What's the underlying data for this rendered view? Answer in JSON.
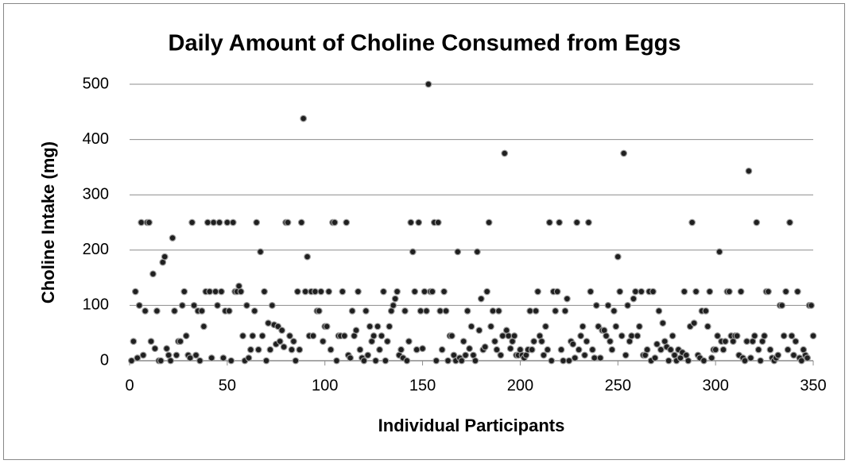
{
  "chart_data": {
    "type": "scatter",
    "title": "Daily Amount of Choline Consumed from Eggs",
    "xlabel": "Individual Participants",
    "ylabel": "Choline Intake (mg)",
    "xlim": [
      0,
      350
    ],
    "xticks": [
      0,
      50,
      100,
      150,
      200,
      250,
      300,
      350
    ],
    "ylim": [
      0,
      500
    ],
    "yticks": [
      0,
      100,
      200,
      300,
      400,
      500
    ],
    "grid": true,
    "series": [
      {
        "color": "#1f1f1f",
        "x": [
          1,
          2,
          3,
          4,
          5,
          6,
          7,
          8,
          9,
          10,
          11,
          12,
          13,
          14,
          15,
          16,
          17,
          18,
          19,
          20,
          21,
          22,
          23,
          24,
          25,
          26,
          27,
          28,
          29,
          30,
          31,
          32,
          33,
          34,
          35,
          36,
          37,
          38,
          39,
          40,
          41,
          42,
          43,
          44,
          45,
          46,
          47,
          48,
          49,
          50,
          51,
          52,
          53,
          54,
          55,
          56,
          57,
          58,
          59,
          60,
          61,
          62,
          63,
          64,
          65,
          66,
          67,
          68,
          69,
          70,
          71,
          72,
          73,
          74,
          75,
          76,
          77,
          78,
          79,
          80,
          81,
          82,
          83,
          84,
          85,
          86,
          87,
          88,
          89,
          90,
          91,
          92,
          93,
          94,
          95,
          96,
          97,
          98,
          99,
          100,
          101,
          102,
          103,
          104,
          105,
          106,
          107,
          108,
          109,
          110,
          111,
          112,
          113,
          114,
          115,
          116,
          117,
          118,
          119,
          120,
          121,
          122,
          123,
          124,
          125,
          126,
          127,
          128,
          129,
          130,
          131,
          132,
          133,
          134,
          135,
          136,
          137,
          138,
          139,
          140,
          141,
          142,
          143,
          144,
          145,
          146,
          147,
          148,
          149,
          150,
          151,
          152,
          153,
          154,
          155,
          156,
          157,
          158,
          159,
          160,
          161,
          162,
          163,
          164,
          165,
          166,
          167,
          168,
          169,
          170,
          171,
          172,
          173,
          174,
          175,
          176,
          177,
          178,
          179,
          180,
          181,
          182,
          183,
          184,
          185,
          186,
          187,
          188,
          189,
          190,
          191,
          192,
          193,
          194,
          195,
          196,
          197,
          198,
          199,
          200,
          201,
          202,
          203,
          204,
          205,
          206,
          207,
          208,
          209,
          210,
          211,
          212,
          213,
          214,
          215,
          216,
          217,
          218,
          219,
          220,
          221,
          222,
          223,
          224,
          225,
          226,
          227,
          228,
          229,
          230,
          231,
          232,
          233,
          234,
          235,
          236,
          237,
          238,
          239,
          240,
          241,
          242,
          243,
          244,
          245,
          246,
          247,
          248,
          249,
          250,
          251,
          252,
          253,
          254,
          255,
          256,
          257,
          258,
          259,
          260,
          261,
          262,
          263,
          264,
          265,
          266,
          267,
          268,
          269,
          270,
          271,
          272,
          273,
          274,
          275,
          276,
          277,
          278,
          279,
          280,
          281,
          282,
          283,
          284,
          285,
          286,
          287,
          288,
          289,
          290,
          291,
          292,
          293,
          294,
          295,
          296,
          297,
          298,
          299,
          300,
          301,
          302,
          303,
          304,
          305,
          306,
          307,
          308,
          309,
          310,
          311,
          312,
          313,
          314,
          315,
          316,
          317,
          318,
          319,
          320,
          321,
          322,
          323,
          324,
          325,
          326,
          327,
          328,
          329,
          330,
          331,
          332,
          333,
          334,
          335,
          336,
          337,
          338,
          339,
          340,
          341,
          342,
          343,
          344,
          345,
          346,
          347,
          348,
          349,
          350
        ],
        "values": [
          0,
          35,
          125,
          5,
          100,
          250,
          10,
          90,
          250,
          250,
          35,
          157,
          22,
          90,
          0,
          0,
          178,
          188,
          22,
          10,
          0,
          222,
          90,
          10,
          35,
          35,
          100,
          125,
          45,
          10,
          5,
          250,
          100,
          10,
          90,
          0,
          90,
          62,
          125,
          250,
          125,
          5,
          250,
          125,
          100,
          250,
          125,
          5,
          90,
          250,
          90,
          0,
          250,
          125,
          125,
          135,
          125,
          45,
          0,
          100,
          5,
          20,
          45,
          90,
          250,
          20,
          197,
          45,
          125,
          0,
          68,
          20,
          100,
          65,
          30,
          62,
          35,
          55,
          25,
          250,
          250,
          45,
          20,
          35,
          0,
          125,
          20,
          250,
          438,
          125,
          188,
          45,
          125,
          45,
          125,
          90,
          90,
          125,
          35,
          62,
          62,
          125,
          20,
          250,
          250,
          0,
          45,
          45,
          125,
          45,
          250,
          10,
          5,
          90,
          45,
          55,
          125,
          20,
          5,
          0,
          90,
          10,
          62,
          35,
          45,
          0,
          62,
          20,
          45,
          125,
          0,
          35,
          62,
          90,
          100,
          112,
          125,
          10,
          20,
          5,
          90,
          0,
          35,
          250,
          197,
          125,
          20,
          250,
          90,
          22,
          125,
          90,
          500,
          125,
          125,
          250,
          0,
          250,
          90,
          20,
          125,
          90,
          0,
          45,
          45,
          10,
          0,
          197,
          5,
          0,
          35,
          10,
          90,
          22,
          62,
          10,
          0,
          197,
          55,
          112,
          20,
          25,
          125,
          250,
          62,
          90,
          35,
          20,
          90,
          10,
          45,
          375,
          55,
          45,
          22,
          35,
          45,
          10,
          10,
          20,
          10,
          5,
          10,
          20,
          90,
          20,
          35,
          90,
          125,
          45,
          35,
          10,
          62,
          20,
          250,
          0,
          125,
          90,
          125,
          250,
          20,
          0,
          90,
          112,
          0,
          35,
          30,
          5,
          250,
          20,
          45,
          62,
          10,
          35,
          250,
          125,
          20,
          5,
          100,
          62,
          5,
          55,
          55,
          45,
          100,
          35,
          20,
          90,
          62,
          188,
          125,
          45,
          375,
          10,
          100,
          35,
          45,
          112,
          125,
          45,
          62,
          125,
          10,
          10,
          20,
          125,
          0,
          125,
          5,
          30,
          90,
          20,
          68,
          35,
          25,
          0,
          20,
          45,
          10,
          0,
          20,
          5,
          15,
          125,
          10,
          0,
          62,
          250,
          68,
          125,
          10,
          5,
          90,
          0,
          90,
          62,
          125,
          5,
          20,
          20,
          45,
          197,
          35,
          20,
          35,
          125,
          125,
          45,
          35,
          45,
          45,
          10,
          125,
          5,
          0,
          35,
          343,
          5,
          35,
          45,
          250,
          20,
          0,
          35,
          45,
          125,
          125,
          20,
          5,
          0,
          5,
          10,
          100,
          100,
          45,
          125,
          20,
          250,
          45,
          10,
          35,
          125,
          5,
          0,
          20,
          10,
          5,
          100,
          100,
          45
        ]
      }
    ]
  }
}
